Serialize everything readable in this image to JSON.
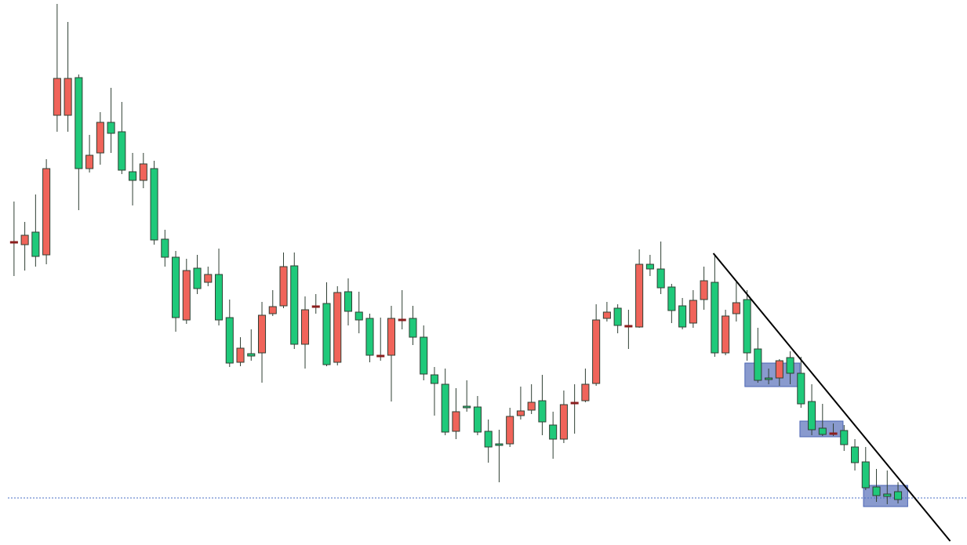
{
  "chart_data": {
    "type": "candlestick",
    "open": [
      387,
      383,
      399,
      370,
      548,
      548,
      596,
      480,
      500,
      539,
      527,
      476,
      465,
      480,
      390,
      367,
      287,
      353,
      335,
      345,
      290,
      233,
      244,
      245,
      295,
      305,
      356,
      256,
      305,
      308,
      233,
      323,
      297,
      289,
      242,
      242,
      288,
      289,
      265,
      217,
      205,
      145,
      177,
      176,
      145,
      129,
      129,
      165,
      172,
      184,
      153,
      135,
      182,
      184,
      206,
      289,
      302,
      280,
      278,
      358,
      352,
      329,
      305,
      283,
      313,
      335,
      245,
      295,
      313,
      250,
      213,
      213,
      239,
      219,
      183,
      149,
      143,
      146,
      125,
      106,
      74,
      65,
      68
    ],
    "high": [
      438,
      412,
      447,
      492,
      690,
      667,
      600,
      523,
      552,
      583,
      565,
      500,
      500,
      490,
      402,
      375,
      365,
      370,
      355,
      378,
      313,
      265,
      275,
      310,
      325,
      373,
      373,
      317,
      320,
      335,
      330,
      340,
      323,
      295,
      290,
      305,
      325,
      305,
      280,
      227,
      225,
      200,
      210,
      190,
      160,
      147,
      175,
      202,
      205,
      217,
      170,
      197,
      205,
      225,
      307,
      310,
      307,
      300,
      377,
      370,
      387,
      333,
      315,
      325,
      355,
      370,
      300,
      335,
      325,
      277,
      225,
      237,
      247,
      240,
      205,
      180,
      155,
      153,
      135,
      125,
      97,
      95,
      80
    ],
    "low": [
      343,
      350,
      355,
      358,
      527,
      527,
      427,
      475,
      485,
      500,
      473,
      433,
      455,
      383,
      355,
      272,
      282,
      320,
      330,
      280,
      227,
      228,
      235,
      207,
      292,
      302,
      250,
      225,
      295,
      228,
      229,
      280,
      270,
      233,
      235,
      183,
      275,
      255,
      210,
      165,
      140,
      135,
      170,
      140,
      105,
      80,
      125,
      160,
      167,
      140,
      110,
      130,
      142,
      182,
      203,
      285,
      270,
      250,
      277,
      343,
      320,
      283,
      275,
      277,
      300,
      240,
      242,
      285,
      235,
      207,
      205,
      203,
      205,
      175,
      140,
      139,
      139,
      120,
      95,
      70,
      55,
      52,
      53
    ],
    "close": [
      387,
      395,
      368,
      480,
      595,
      595,
      480,
      497,
      539,
      525,
      478,
      465,
      486,
      389,
      367,
      290,
      350,
      327,
      345,
      287,
      232,
      251,
      241,
      293,
      304,
      355,
      256,
      300,
      305,
      230,
      322,
      298,
      287,
      242,
      242,
      289,
      288,
      265,
      218,
      206,
      144,
      170,
      175,
      144,
      125,
      127,
      164,
      171,
      182,
      157,
      135,
      179,
      182,
      205,
      287,
      297,
      280,
      280,
      358,
      352,
      328,
      299,
      278,
      312,
      337,
      245,
      292,
      309,
      245,
      210,
      212,
      235,
      219,
      180,
      147,
      141,
      143,
      128,
      105,
      73,
      63,
      62,
      58
    ],
    "up_color": "#f0645a",
    "down_color": "#1fc97a",
    "doji_color": "#8b1e1e",
    "outline_color": "#2f3f33",
    "xlim": [
      -1.3,
      88.4
    ],
    "ylim": [
      0,
      695
    ],
    "trendline": {
      "x": [
        64.87,
        86.84
      ],
      "y": [
        372,
        5
      ],
      "color": "#000000"
    },
    "hline": {
      "value": 60,
      "color": "#4a6fc4"
    },
    "zones": [
      {
        "x": [
          67.8,
          72.9
        ],
        "y": [
          202,
          232
        ],
        "color": "#4a64b4"
      },
      {
        "x": [
          72.9,
          76.9
        ],
        "y": [
          138,
          158
        ],
        "color": "#4a64b4"
      },
      {
        "x": [
          78.8,
          82.9
        ],
        "y": [
          49,
          76
        ],
        "color": "#4a64b4"
      }
    ]
  }
}
